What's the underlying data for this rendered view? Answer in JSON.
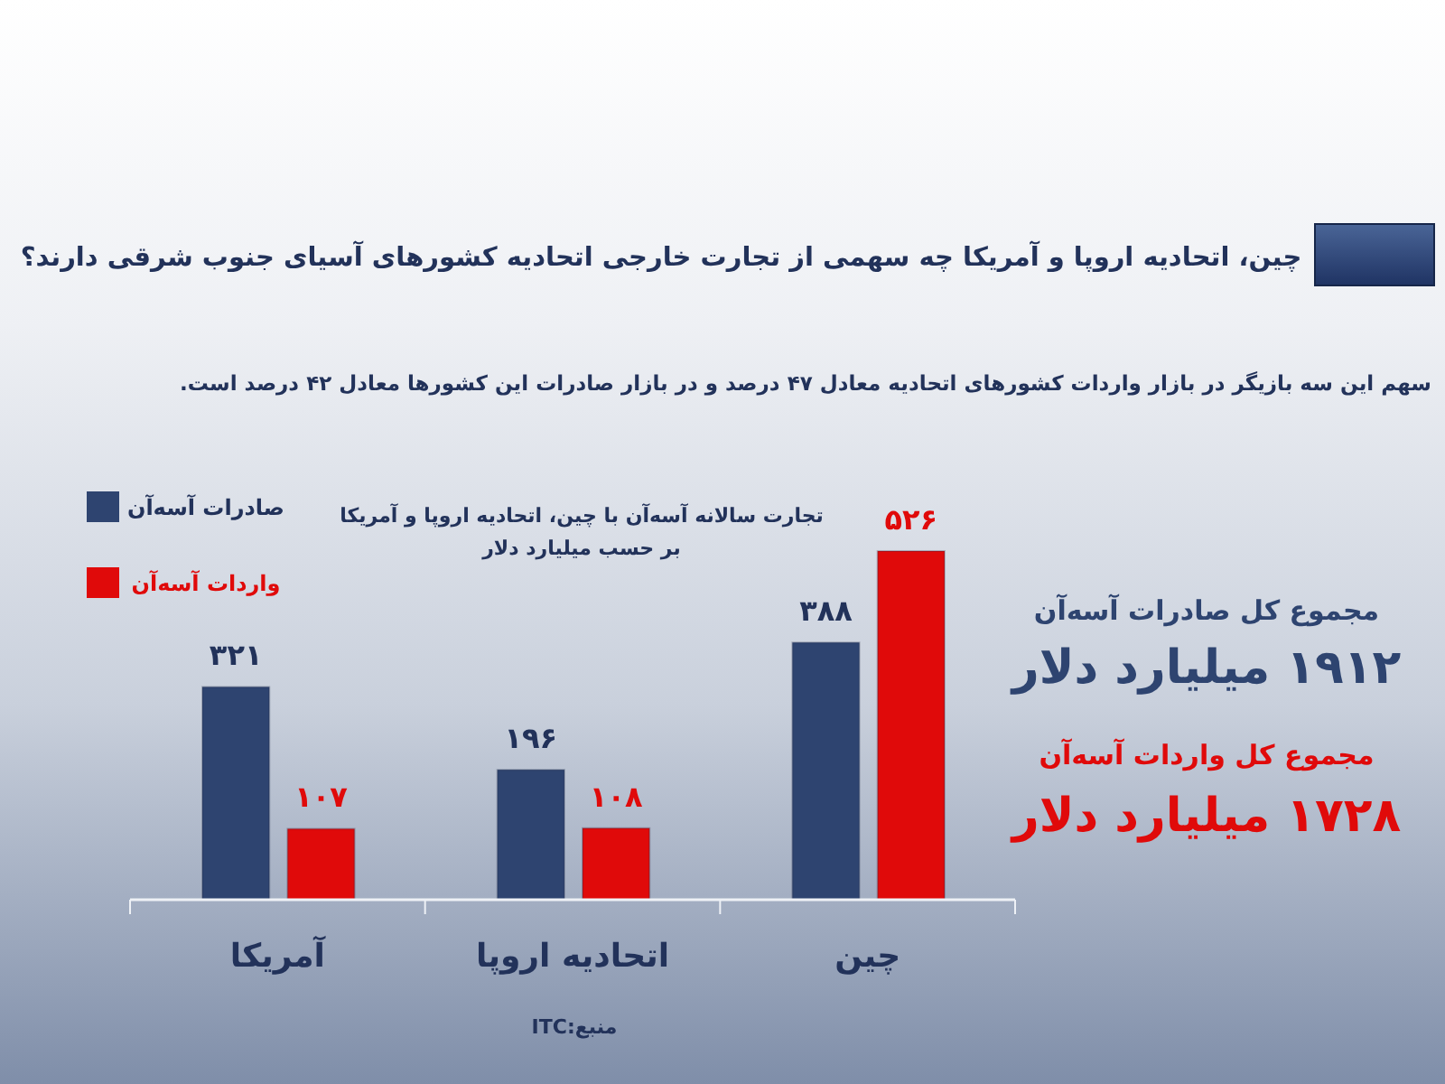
{
  "chart_data": {
    "type": "bar",
    "title": "چین، اتحادیه اروپا و آمریکا چه سهمی از تجارت خارجی اتحادیه کشورهای آسیای جنوب شرقی دارند؟",
    "subtitle": "سهم این سه بازیگر در بازار واردات کشورهای اتحادیه معادل ۴۷ درصد و در بازار صادرات این کشورها معادل ۴۲ درصد است.",
    "categories": [
      "آمریکا",
      "اتحادیه اروپا",
      "چین"
    ],
    "series": [
      {
        "name": "صادرات آسه‌آن",
        "color": "#2e4470",
        "values": [
          321,
          196,
          388
        ],
        "value_labels": [
          "۳۲۱",
          "۱۹۶",
          "۳۸۸"
        ]
      },
      {
        "name": "واردات آسه‌آن",
        "color": "#e00a0a",
        "values": [
          107,
          108,
          526
        ],
        "value_labels": [
          "۱۰۷",
          "۱۰۸",
          "۵۲۶"
        ]
      }
    ],
    "legend": "top left",
    "annotations": [
      "تجارت سالانه آسه‌آن با چین، اتحادیه اروپا و آمریکا",
      "بر حسب میلیارد دلار",
      "مجموع کل صادرات آسه‌آن",
      "۱۹۱۲ میلیارد دلار",
      "مجموع کل واردات آسه‌آن",
      "۱۷۲۸ میلیارد دلار",
      "منبع:ITC"
    ]
  }
}
